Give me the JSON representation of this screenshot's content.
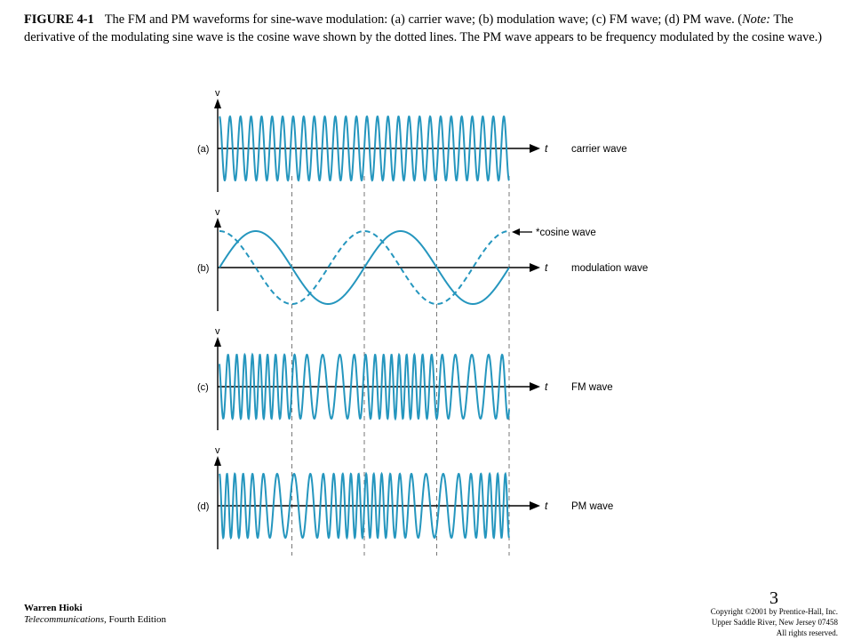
{
  "caption": {
    "figure_id": "FIGURE 4-1",
    "text_main": "The FM and PM waveforms for sine-wave modulation: (a) carrier wave; (b) modulation wave; (c) FM wave; (d) PM wave. (",
    "note_word": "Note:",
    "note_text": " The derivative of the modulating sine wave is the cosine wave shown by the dotted lines. The PM wave appears to be frequency modulated by the cosine wave.)"
  },
  "panels": [
    {
      "label": "(a)",
      "axis_v": "v",
      "axis_t": "t",
      "name": "carrier wave"
    },
    {
      "label": "(b)",
      "axis_v": "v",
      "axis_t": "t",
      "name": "modulation wave",
      "annotation": "*cosine wave"
    },
    {
      "label": "(c)",
      "axis_v": "v",
      "axis_t": "t",
      "name": "FM wave"
    },
    {
      "label": "(d)",
      "axis_v": "v",
      "axis_t": "t",
      "name": "PM wave"
    }
  ],
  "colors": {
    "wave": "#2596be",
    "axis": "#000000",
    "guide": "#777777"
  },
  "page_number": "3",
  "footer_left": {
    "author": "Warren Hioki",
    "book_title": "Telecommunications,",
    "edition": " Fourth Edition"
  },
  "footer_right": {
    "line1": "Copyright ©2001 by Prentice-Hall, Inc.",
    "line2": "Upper Saddle River, New Jersey 07458",
    "line3": "All rights reserved."
  }
}
